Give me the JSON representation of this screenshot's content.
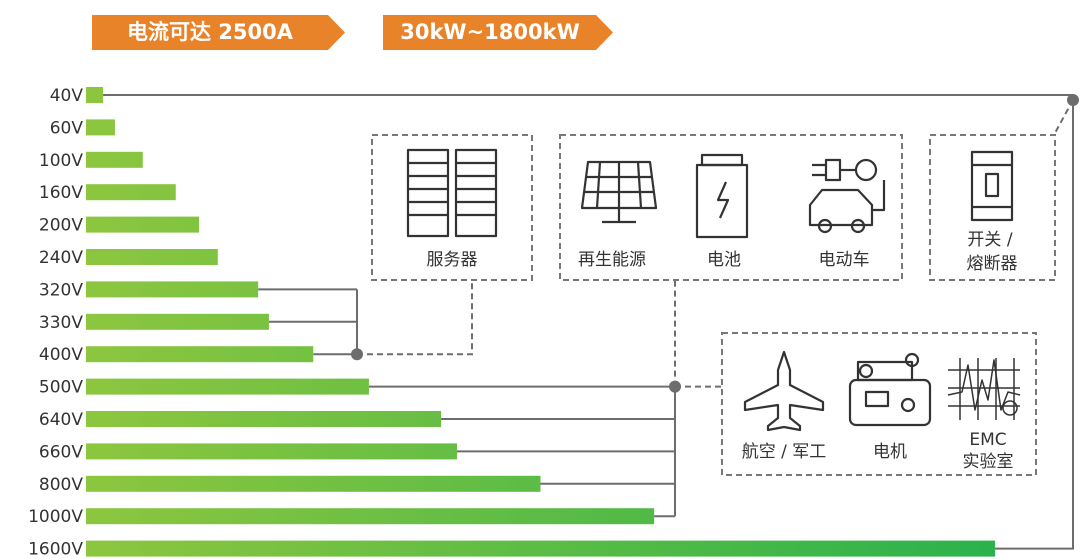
{
  "banners": [
    "电流可达 2500A",
    "30kW~1800kW"
  ],
  "applications": {
    "server": "服务器",
    "renewable": "再生能源",
    "battery": "电池",
    "ev": "电动车",
    "switch": [
      "开关 /",
      "熔断器"
    ],
    "aero": "航空 / 军工",
    "motor": "电机",
    "emc": [
      "EMC",
      "实验室"
    ]
  },
  "chart_data": {
    "type": "bar",
    "orientation": "horizontal",
    "categories": [
      "40V",
      "60V",
      "100V",
      "160V",
      "200V",
      "240V",
      "320V",
      "330V",
      "400V",
      "500V",
      "640V",
      "660V",
      "800V",
      "1000V",
      "1600V"
    ],
    "values": [
      30,
      51,
      100,
      158,
      199,
      232,
      303,
      322,
      400,
      498,
      625,
      653,
      800,
      1000,
      1600
    ],
    "color": [
      "#8dc63f",
      "#2bb24c"
    ],
    "xlim": [
      0,
      1600
    ]
  }
}
